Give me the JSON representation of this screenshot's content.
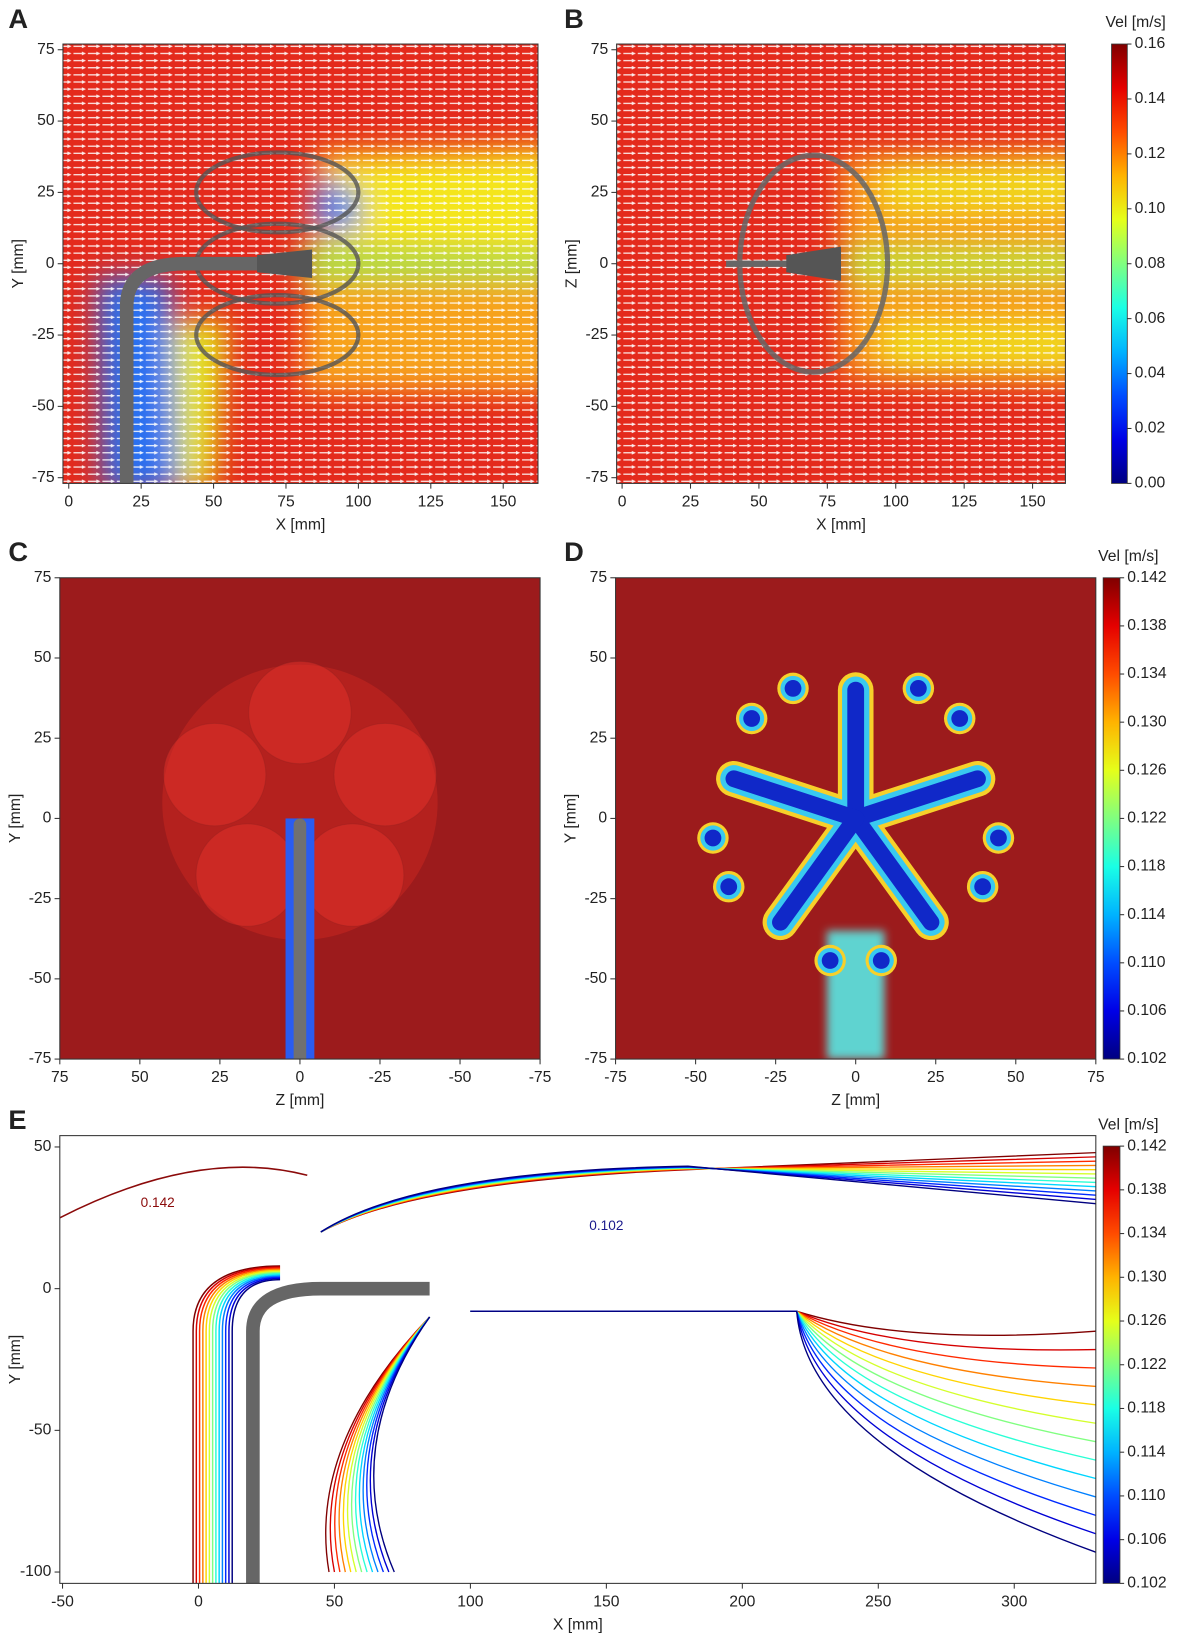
{
  "chart_data": [
    {
      "type": "heatmap",
      "panel": "A",
      "xlabel": "X [mm]",
      "ylabel": "Y [mm]",
      "xlim": [
        -2,
        162
      ],
      "ylim": [
        -77,
        77
      ],
      "xticks": [
        0,
        25,
        50,
        75,
        100,
        125,
        150
      ],
      "yticks": [
        -75,
        -50,
        -25,
        0,
        25,
        50,
        75
      ],
      "colormap": "jet"
    },
    {
      "type": "heatmap",
      "panel": "B",
      "xlabel": "X [mm]",
      "ylabel": "Z [mm]",
      "xlim": [
        -2,
        162
      ],
      "ylim": [
        -77,
        77
      ],
      "xticks": [
        0,
        25,
        50,
        75,
        100,
        125,
        150
      ],
      "yticks": [
        -75,
        -50,
        -25,
        0,
        25,
        50,
        75
      ],
      "colormap": "jet",
      "colorbar": {
        "label": "Vel [m/s]",
        "lim": [
          0,
          0.16
        ],
        "ticks": [
          {
            "value": 0,
            "label": "0.00"
          },
          0.02,
          0.04,
          0.06,
          0.08,
          {
            "value": 0.1,
            "label": "0.10"
          },
          0.12,
          0.14,
          0.16
        ]
      }
    },
    {
      "type": "heatmap",
      "panel": "C",
      "xlabel": "Z [mm]",
      "ylabel": "Y [mm]",
      "xlim": [
        75,
        -75
      ],
      "ylim": [
        -75,
        75
      ],
      "xticks": [
        75,
        50,
        25,
        0,
        -25,
        -50,
        -75
      ],
      "yticks": [
        -75,
        -50,
        -25,
        0,
        25,
        50,
        75
      ],
      "colormap": "jet"
    },
    {
      "type": "heatmap",
      "panel": "D",
      "xlabel": "Z [mm]",
      "ylabel": "Y [mm]",
      "xlim": [
        -75,
        75
      ],
      "ylim": [
        -75,
        75
      ],
      "xticks": [
        -75,
        -50,
        -25,
        0,
        25,
        50,
        75
      ],
      "yticks": [
        -75,
        -50,
        -25,
        0,
        25,
        50,
        75
      ],
      "colormap": "jet",
      "colorbar": {
        "label": "Vel [m/s]",
        "lim": [
          0.102,
          0.142
        ],
        "ticks": [
          0.102,
          0.106,
          {
            "value": 0.11,
            "label": "0.110"
          },
          0.114,
          0.118,
          0.122,
          0.126,
          {
            "value": 0.13,
            "label": "0.130"
          },
          0.134,
          0.138,
          0.142
        ]
      }
    },
    {
      "type": "contour",
      "panel": "E",
      "xlabel": "X [mm]",
      "ylabel": "Y [mm]",
      "xlim": [
        -51,
        330
      ],
      "ylim": [
        -104,
        54
      ],
      "xticks": [
        -50,
        0,
        50,
        100,
        150,
        200,
        250,
        300
      ],
      "yticks": [
        -100,
        -50,
        0,
        50
      ],
      "colormap": "jet",
      "contour_labels": [
        0.142,
        0.102
      ],
      "colorbar": {
        "label": "Vel [m/s]",
        "lim": [
          0.102,
          0.142
        ],
        "ticks": [
          0.102,
          0.106,
          {
            "value": 0.11,
            "label": "0.110"
          },
          0.114,
          0.118,
          0.122,
          0.126,
          {
            "value": 0.13,
            "label": "0.130"
          },
          0.134,
          0.138,
          0.142
        ]
      }
    }
  ]
}
